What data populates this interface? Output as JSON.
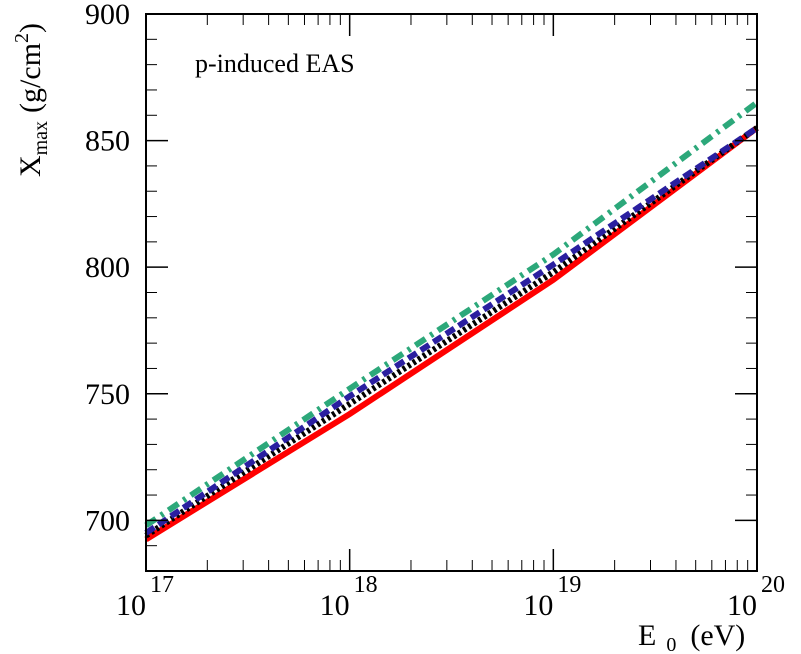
{
  "chart_data": {
    "type": "line",
    "annotation": "p-induced EAS",
    "ylabel_parts": [
      "X",
      "max",
      "(g/cm",
      "2",
      ")"
    ],
    "xlabel_parts": [
      "E",
      "0",
      "(eV)"
    ],
    "x": [
      1e+17,
      1e+18,
      1e+19,
      1e+20
    ],
    "xlim": [
      1e+17,
      1e+20
    ],
    "xscale": "log",
    "xticks": [
      {
        "value": 1e+17,
        "label": "10",
        "power": "17"
      },
      {
        "value": 1e+18,
        "label": "10",
        "power": "18"
      },
      {
        "value": 1e+19,
        "label": "10",
        "power": "19"
      },
      {
        "value": 1e+20,
        "label": "10",
        "power": "20"
      }
    ],
    "ylim": [
      680,
      900
    ],
    "yticks": [
      700,
      750,
      800,
      850,
      900
    ],
    "series": [
      {
        "color": "#ff0000",
        "dash": "solid",
        "values": [
          692.5,
          742,
          795,
          855
        ]
      },
      {
        "color": "#000000",
        "dash": "dotted",
        "values": [
          694,
          746,
          798,
          855
        ]
      },
      {
        "color": "#2a1fa0",
        "dash": "dashed",
        "values": [
          695,
          749,
          801,
          855
        ]
      },
      {
        "color": "#2ca87a",
        "dash": "dashdot",
        "values": [
          698,
          752,
          805,
          865
        ]
      }
    ]
  }
}
